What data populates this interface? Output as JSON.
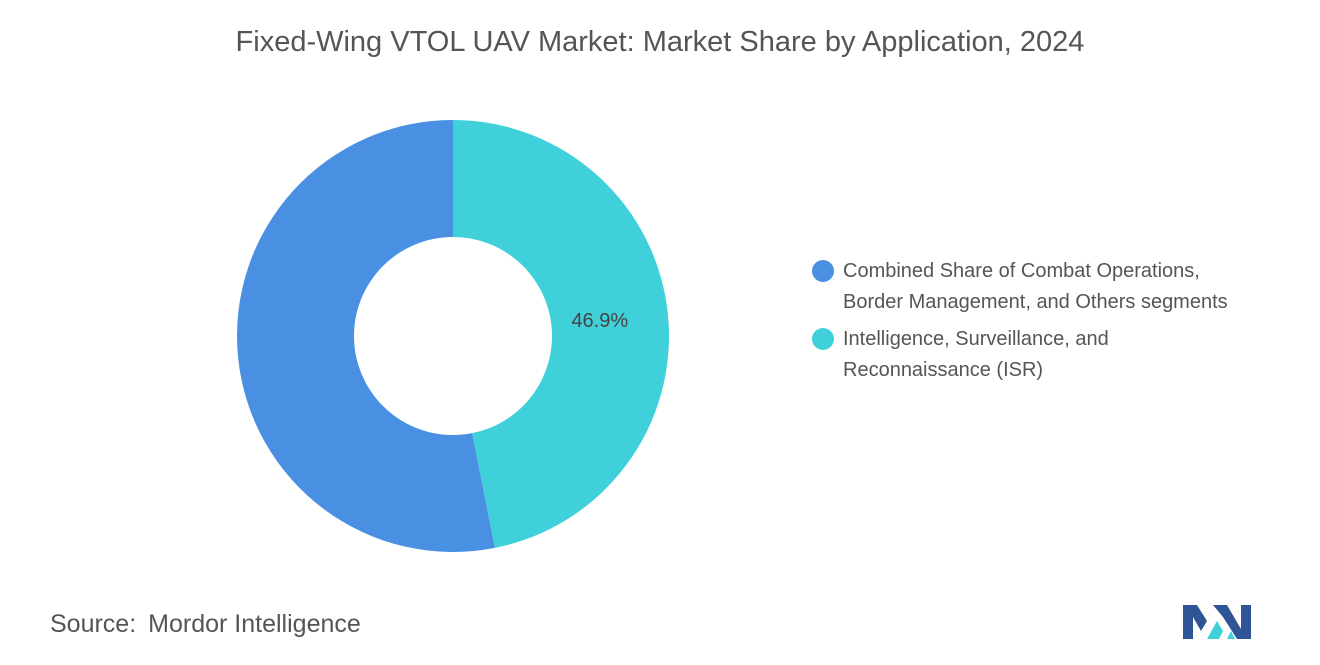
{
  "title": "Fixed-Wing VTOL UAV Market: Market Share by Application, 2024",
  "chart_data": {
    "type": "pie",
    "donut": true,
    "title": "Fixed-Wing VTOL UAV Market: Market Share by Application, 2024",
    "series": [
      {
        "name": "Combined Share of Combat Operations, Border Management, and Others segments",
        "label": "Combined Share of Combat Operations,\nBorder Management, and Others segments",
        "value": 53.1,
        "color": "#4a90e2",
        "data_label": ""
      },
      {
        "name": "Intelligence, Surveillance, and Reconnaissance (ISR)",
        "label": "Intelligence, Surveillance, and\nReconnaissance (ISR)",
        "value": 46.9,
        "color": "#40d0da",
        "data_label": "46.9%"
      }
    ],
    "legend_position": "right"
  },
  "source": {
    "key": "Source:",
    "value": "Mordor Intelligence"
  },
  "logo": {
    "icon": "mordor-intelligence-logo-icon",
    "colors": [
      "#2f5597",
      "#40d0da"
    ]
  }
}
